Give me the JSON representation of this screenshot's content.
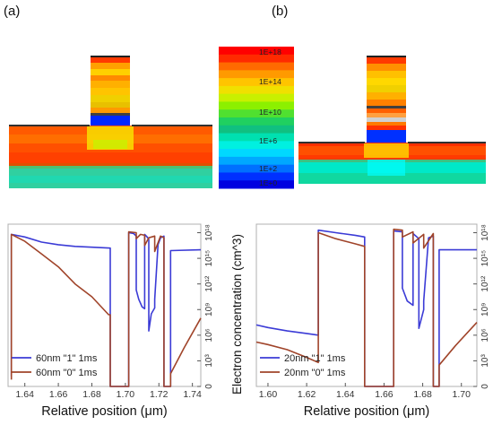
{
  "panel_labels": [
    "(a)",
    "(b)"
  ],
  "colorbar": {
    "ticks": [
      "1E+18",
      "1E+14",
      "1E+10",
      "1E+6",
      "1E+2",
      "1E+0"
    ],
    "colors": [
      "#ff0000",
      "#ff2a00",
      "#ff6a00",
      "#ff9a00",
      "#ffc400",
      "#f0e000",
      "#c8f000",
      "#8cf000",
      "#50e030",
      "#20d060",
      "#10c080",
      "#00e0b0",
      "#00f0e0",
      "#00d8ff",
      "#00a8ff",
      "#0070ff",
      "#0030ff",
      "#0000e0"
    ]
  },
  "colors": {
    "series_1": "#3b3bd6",
    "series_0": "#a0442a"
  },
  "chart_data": [
    {
      "type": "line",
      "panel": "(a)",
      "xlabel": "Relative position (μm)",
      "ylabel": "",
      "x_ticks": [
        "1.64",
        "1.66",
        "1.68",
        "1.70",
        "1.72",
        "1.74"
      ],
      "y_ticks": [
        "0",
        "10³",
        "10⁶",
        "10⁹",
        "10¹²",
        "10¹⁵",
        "10¹⁸"
      ],
      "xlim": [
        1.63,
        1.745
      ],
      "ylim": [
        0,
        19
      ],
      "legend_position": "bottom-left",
      "series": [
        {
          "name": "60nm \"1\" 1ms",
          "color": "#3b3bd6",
          "points": [
            [
              1.632,
              1.2
            ],
            [
              1.632,
              17.8
            ],
            [
              1.64,
              17.5
            ],
            [
              1.65,
              16.9
            ],
            [
              1.66,
              16.6
            ],
            [
              1.67,
              16.4
            ],
            [
              1.68,
              16.3
            ],
            [
              1.691,
              16.2
            ],
            [
              1.691,
              0
            ],
            [
              1.702,
              0
            ],
            [
              1.702,
              18.0
            ],
            [
              1.705,
              17.9
            ],
            [
              1.7065,
              17.6
            ],
            [
              1.7065,
              11.3
            ],
            [
              1.708,
              10.2
            ],
            [
              1.71,
              9.3
            ],
            [
              1.7115,
              9.1
            ],
            [
              1.7115,
              17.8
            ],
            [
              1.713,
              17.5
            ],
            [
              1.714,
              17.2
            ],
            [
              1.714,
              6.5
            ],
            [
              1.7155,
              8.5
            ],
            [
              1.7175,
              9.2
            ],
            [
              1.7175,
              10.2
            ],
            [
              1.7195,
              16.6
            ],
            [
              1.721,
              17.4
            ],
            [
              1.723,
              17.6
            ],
            [
              1.723,
              0
            ],
            [
              1.727,
              0
            ],
            [
              1.727,
              15.9
            ],
            [
              1.745,
              16.0
            ]
          ]
        },
        {
          "name": "60nm \"0\" 1ms",
          "color": "#a0442a",
          "points": [
            [
              1.632,
              0.8
            ],
            [
              1.632,
              17.8
            ],
            [
              1.64,
              17.0
            ],
            [
              1.65,
              15.5
            ],
            [
              1.66,
              14.0
            ],
            [
              1.67,
              12.0
            ],
            [
              1.68,
              10.5
            ],
            [
              1.69,
              8.4
            ],
            [
              1.691,
              8.4
            ],
            [
              1.691,
              0
            ],
            [
              1.702,
              0
            ],
            [
              1.702,
              18.1
            ],
            [
              1.7065,
              18.0
            ],
            [
              1.7065,
              17.3
            ],
            [
              1.709,
              17.8
            ],
            [
              1.7115,
              17.7
            ],
            [
              1.7115,
              16.5
            ],
            [
              1.714,
              17.4
            ],
            [
              1.7175,
              17.6
            ],
            [
              1.7175,
              15.8
            ],
            [
              1.721,
              17.6
            ],
            [
              1.723,
              17.4
            ],
            [
              1.723,
              0
            ],
            [
              1.727,
              0
            ],
            [
              1.727,
              1.5
            ],
            [
              1.735,
              4.5
            ],
            [
              1.745,
              8.0
            ]
          ]
        }
      ]
    },
    {
      "type": "line",
      "panel": "(b)",
      "xlabel": "Relative position (μm)",
      "ylabel": "Electron concentration (cm^3)",
      "x_ticks": [
        "1.60",
        "1.62",
        "1.64",
        "1.66",
        "1.68",
        "1.70"
      ],
      "y_ticks": [
        "0",
        "10³",
        "10⁶",
        "10⁹",
        "10¹²",
        "10¹⁵",
        "10¹⁸"
      ],
      "xlim": [
        1.594,
        1.708
      ],
      "ylim": [
        0,
        19
      ],
      "legend_position": "bottom-left",
      "series": [
        {
          "name": "20nm \"1\" 1ms",
          "color": "#3b3bd6",
          "points": [
            [
              1.594,
              7.2
            ],
            [
              1.6,
              6.9
            ],
            [
              1.61,
              6.5
            ],
            [
              1.62,
              6.2
            ],
            [
              1.626,
              6.0
            ],
            [
              1.626,
              18.3
            ],
            [
              1.635,
              18.0
            ],
            [
              1.645,
              17.7
            ],
            [
              1.65,
              17.5
            ],
            [
              1.65,
              0
            ],
            [
              1.665,
              0
            ],
            [
              1.665,
              18.2
            ],
            [
              1.6695,
              18.1
            ],
            [
              1.6695,
              11.5
            ],
            [
              1.672,
              10.0
            ],
            [
              1.675,
              9.5
            ],
            [
              1.675,
              17.9
            ],
            [
              1.678,
              17.3
            ],
            [
              1.678,
              6.8
            ],
            [
              1.6805,
              9.0
            ],
            [
              1.6805,
              10.0
            ],
            [
              1.683,
              17.4
            ],
            [
              1.6855,
              17.6
            ],
            [
              1.6855,
              0
            ],
            [
              1.6885,
              0
            ],
            [
              1.6885,
              16.0
            ],
            [
              1.708,
              16.0
            ]
          ]
        },
        {
          "name": "20nm \"0\" 1ms",
          "color": "#a0442a",
          "points": [
            [
              1.594,
              5.2
            ],
            [
              1.6,
              4.9
            ],
            [
              1.61,
              4.3
            ],
            [
              1.62,
              3.4
            ],
            [
              1.626,
              2.8
            ],
            [
              1.626,
              18.0
            ],
            [
              1.635,
              17.3
            ],
            [
              1.645,
              16.7
            ],
            [
              1.65,
              16.4
            ],
            [
              1.65,
              0
            ],
            [
              1.665,
              0
            ],
            [
              1.665,
              18.4
            ],
            [
              1.6695,
              18.3
            ],
            [
              1.6695,
              17.5
            ],
            [
              1.675,
              18.1
            ],
            [
              1.675,
              16.8
            ],
            [
              1.6805,
              17.8
            ],
            [
              1.6805,
              16.2
            ],
            [
              1.6855,
              17.9
            ],
            [
              1.6855,
              0
            ],
            [
              1.6885,
              0
            ],
            [
              1.6885,
              2.5
            ],
            [
              1.697,
              4.8
            ],
            [
              1.708,
              7.5
            ]
          ]
        }
      ]
    }
  ]
}
